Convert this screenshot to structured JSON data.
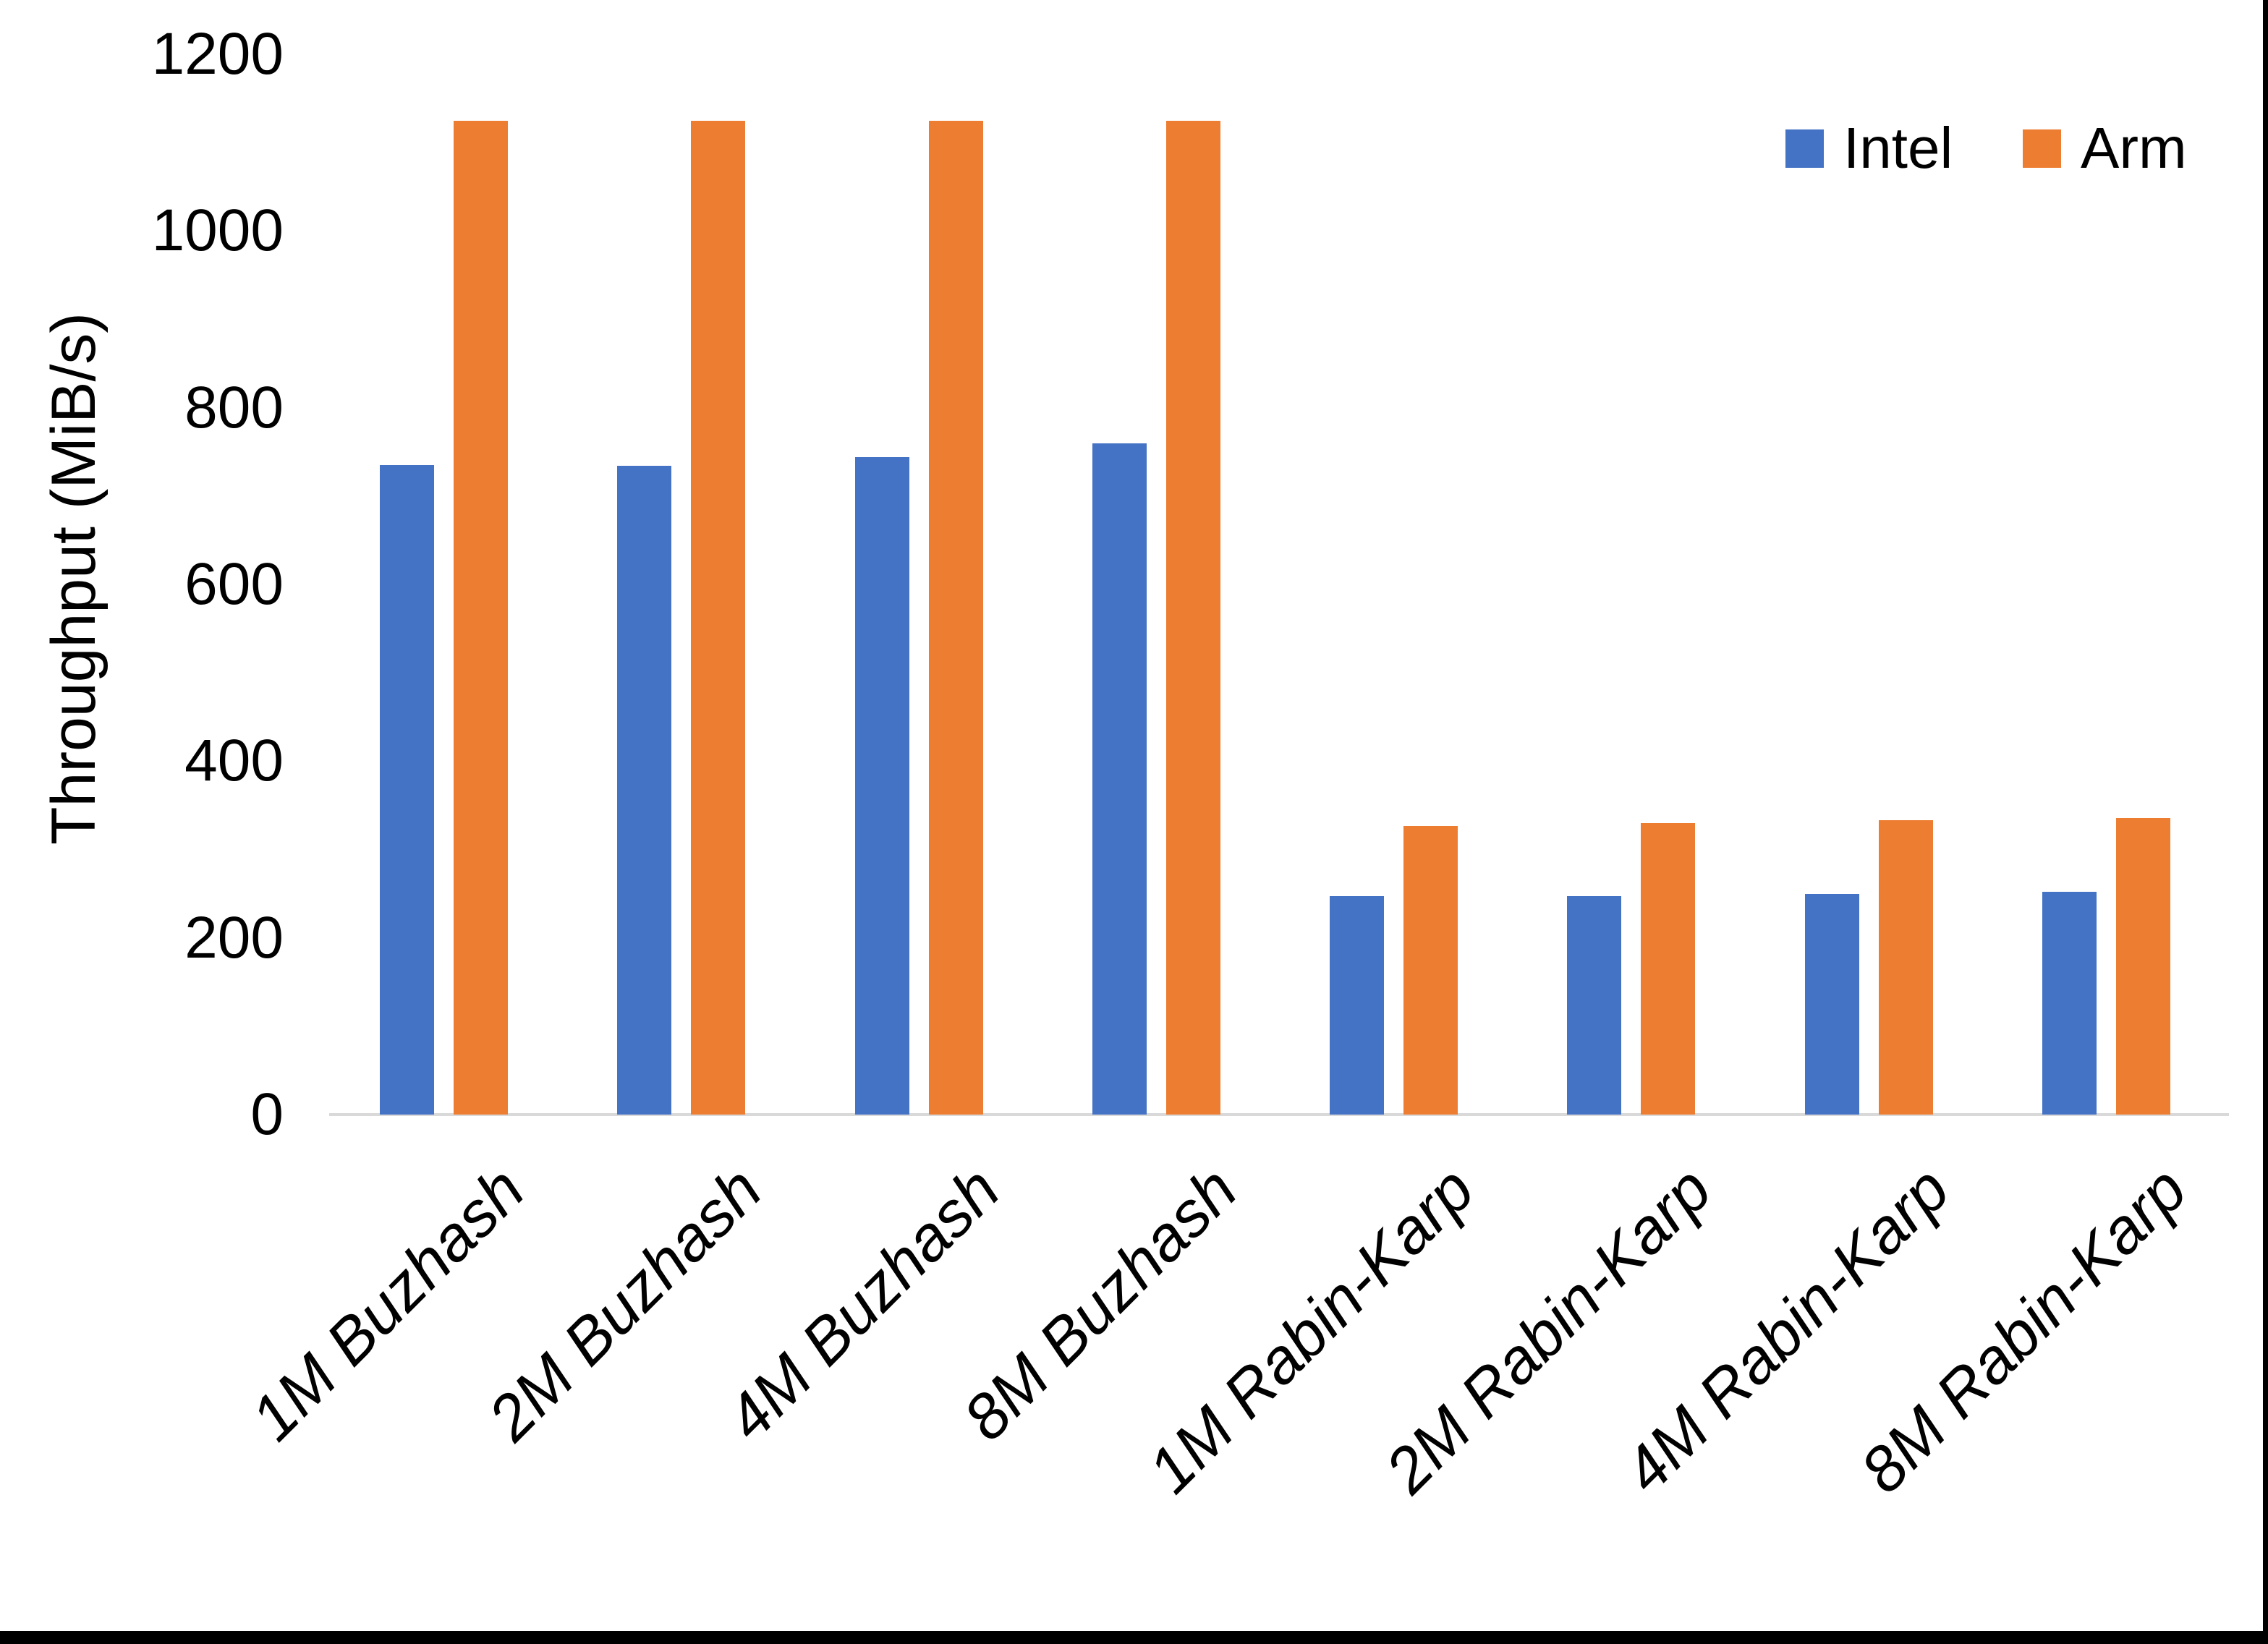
{
  "chart_data": {
    "type": "bar",
    "title": "",
    "ylabel": "Throughput (MiB/s)",
    "xlabel": "",
    "ylim": [
      0,
      1200
    ],
    "yticks": [
      0,
      200,
      400,
      600,
      800,
      1000,
      1200
    ],
    "grid": false,
    "legend_position": "top-right",
    "categories": [
      "1M Buzhash",
      "2M Buzhash",
      "4M Buzhash",
      "8M Buzhash",
      "1M Rabin-Karp",
      "2M Rabin-Karp",
      "4M Rabin-Karp",
      "8M Rabin-Karp"
    ],
    "series": [
      {
        "name": "Intel",
        "color": "#4472C4",
        "values": [
          735,
          734,
          744,
          760,
          247,
          247,
          250,
          252
        ]
      },
      {
        "name": "Arm",
        "color": "#ED7D31",
        "values": [
          1125,
          1125,
          1125,
          1125,
          327,
          330,
          333,
          336
        ]
      }
    ]
  },
  "colors": {
    "background": "#FFFFFF",
    "axis_line": "#D9D9D9",
    "text": "#000000",
    "frame_bars": "#000000"
  }
}
